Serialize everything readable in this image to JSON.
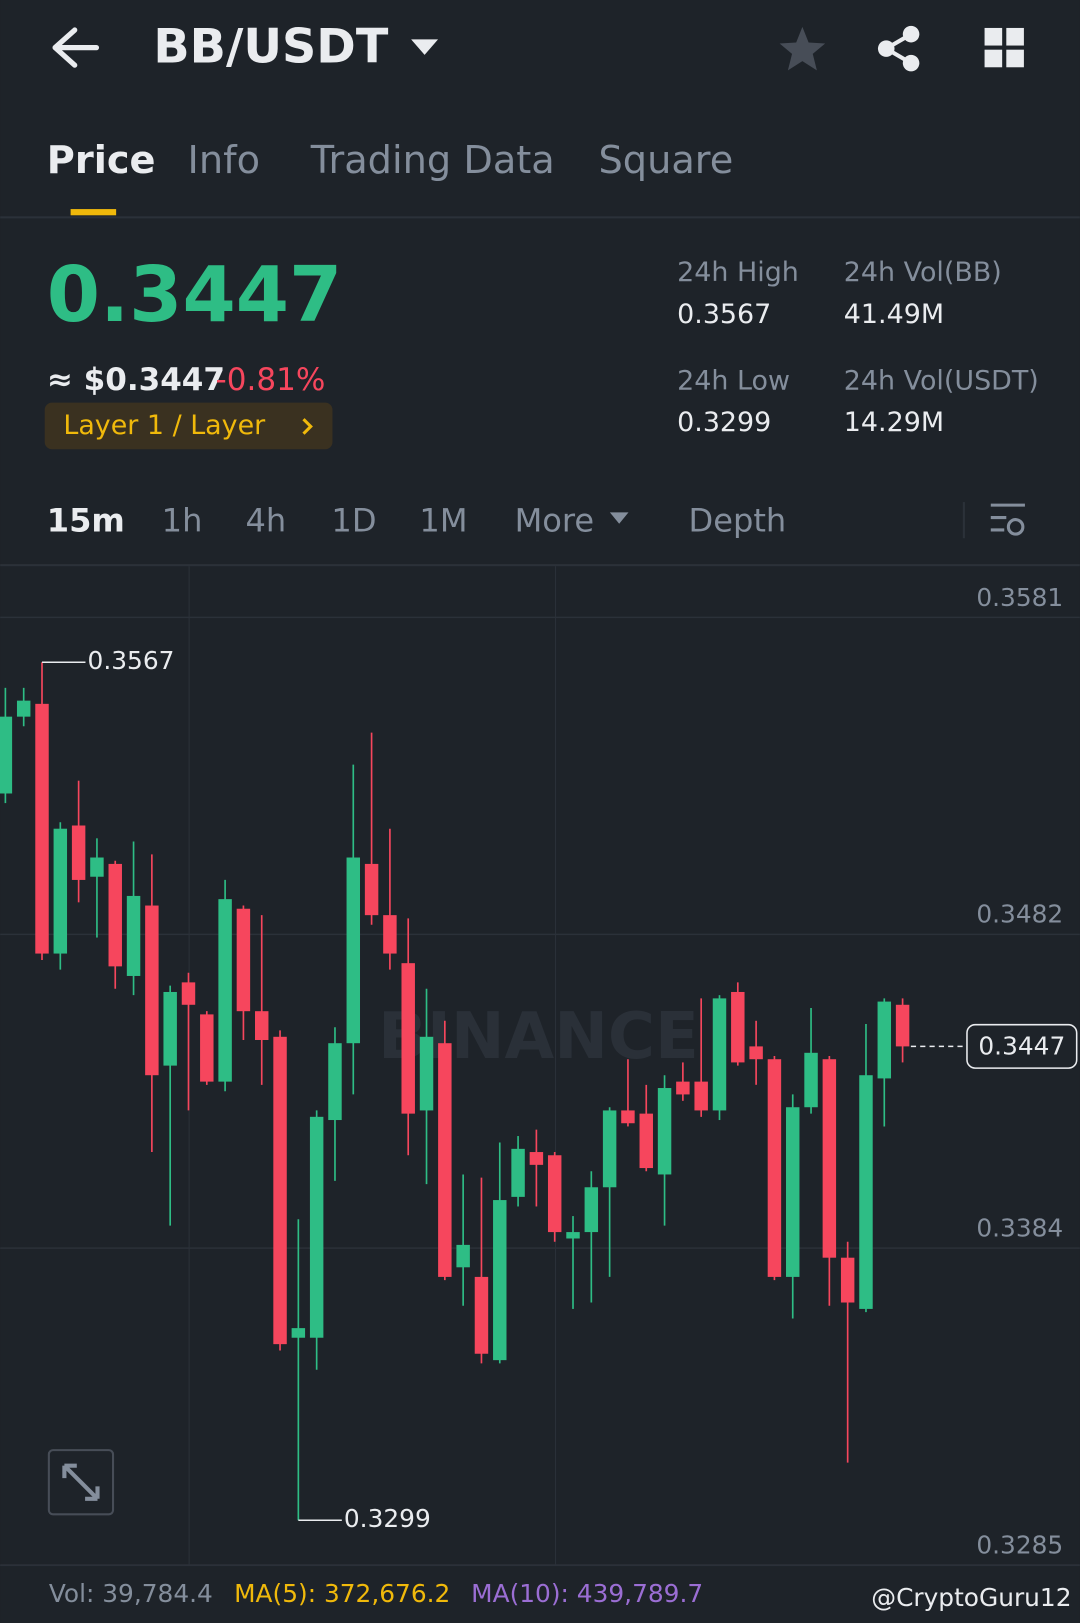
{
  "header": {
    "pair": "BB/USDT"
  },
  "tabs": [
    "Price",
    "Info",
    "Trading Data",
    "Square"
  ],
  "ticker": {
    "price": "0.3447",
    "usd": "≈ $0.3447",
    "change": "-0.81%",
    "tag": "Layer 1 / Layer"
  },
  "stats": [
    {
      "label": "24h High",
      "value": "0.3567"
    },
    {
      "label": "24h Vol(BB)",
      "value": "41.49M"
    },
    {
      "label": "24h Low",
      "value": "0.3299"
    },
    {
      "label": "24h Vol(USDT)",
      "value": "14.29M"
    }
  ],
  "intervals": [
    "15m",
    "1h",
    "4h",
    "1D",
    "1M",
    "More",
    "Depth"
  ],
  "chart_data": {
    "type": "candlestick",
    "up_color": "#2ebd85",
    "down_color": "#f6465d",
    "open": [
      0.3526,
      0.355,
      0.3554,
      0.3476,
      0.3516,
      0.35,
      0.3504,
      0.3469,
      0.3491,
      0.3441,
      0.3467,
      0.3457,
      0.3436,
      0.349,
      0.3458,
      0.345,
      0.3356,
      0.3356,
      0.3424,
      0.3448,
      0.3504,
      0.3488,
      0.3473,
      0.3427,
      0.3448,
      0.3378,
      0.3375,
      0.3349,
      0.34,
      0.3414,
      0.3413,
      0.3387,
      0.3389,
      0.3403,
      0.3427,
      0.3426,
      0.3407,
      0.3436,
      0.3436,
      0.3427,
      0.3464,
      0.3447,
      0.3443,
      0.3375,
      0.3428,
      0.3443,
      0.3381,
      0.3365,
      0.3437,
      0.346
    ],
    "high": [
      0.3559,
      0.3559,
      0.3567,
      0.3517,
      0.353,
      0.3512,
      0.3505,
      0.3511,
      0.3507,
      0.3466,
      0.347,
      0.3458,
      0.3499,
      0.3491,
      0.3488,
      0.3452,
      0.3393,
      0.3427,
      0.3453,
      0.3535,
      0.3545,
      0.3515,
      0.3487,
      0.3465,
      0.3455,
      0.3407,
      0.3406,
      0.3417,
      0.3419,
      0.3421,
      0.3414,
      0.3394,
      0.3408,
      0.3428,
      0.3443,
      0.3435,
      0.3438,
      0.3442,
      0.3462,
      0.3463,
      0.3467,
      0.3455,
      0.3444,
      0.3432,
      0.3459,
      0.3444,
      0.3386,
      0.3454,
      0.3462,
      0.3462
    ],
    "low": [
      0.3523,
      0.3547,
      0.3474,
      0.3471,
      0.3492,
      0.3481,
      0.3465,
      0.3463,
      0.3414,
      0.3391,
      0.3427,
      0.3435,
      0.3433,
      0.3449,
      0.3435,
      0.3352,
      0.3299,
      0.3346,
      0.3405,
      0.3432,
      0.3485,
      0.3471,
      0.3413,
      0.3404,
      0.3374,
      0.3366,
      0.3348,
      0.3348,
      0.3397,
      0.3397,
      0.3386,
      0.3365,
      0.3367,
      0.3375,
      0.3422,
      0.3408,
      0.3391,
      0.343,
      0.3425,
      0.3424,
      0.3441,
      0.3435,
      0.3374,
      0.3362,
      0.3426,
      0.3366,
      0.3317,
      0.3364,
      0.3422,
      0.3442
    ],
    "close": [
      0.355,
      0.3555,
      0.3476,
      0.3515,
      0.3499,
      0.3506,
      0.3472,
      0.3494,
      0.3438,
      0.3464,
      0.346,
      0.3436,
      0.3493,
      0.3458,
      0.3449,
      0.3354,
      0.3359,
      0.3425,
      0.3448,
      0.3506,
      0.3488,
      0.3476,
      0.3426,
      0.345,
      0.3375,
      0.3385,
      0.3351,
      0.3399,
      0.3415,
      0.341,
      0.3389,
      0.3389,
      0.3403,
      0.3427,
      0.3423,
      0.3409,
      0.3434,
      0.3432,
      0.3427,
      0.3462,
      0.3442,
      0.3443,
      0.3375,
      0.3428,
      0.3445,
      0.3381,
      0.3367,
      0.3438,
      0.3461,
      0.3447
    ],
    "ylim": [
      0.3285,
      0.3597
    ],
    "yticks": [
      0.3581,
      0.3482,
      0.3384,
      0.3285
    ],
    "grid": true,
    "high_marker": 0.3567,
    "low_marker": 0.3299,
    "last_price": 0.3447
  },
  "footer": {
    "vol": "Vol: 39,784.4",
    "ma5": "MA(5): 372,676.2",
    "ma10": "MA(10): 439,789.7"
  },
  "watermark": "BINANCE",
  "credit": "@CryptoGuru12"
}
